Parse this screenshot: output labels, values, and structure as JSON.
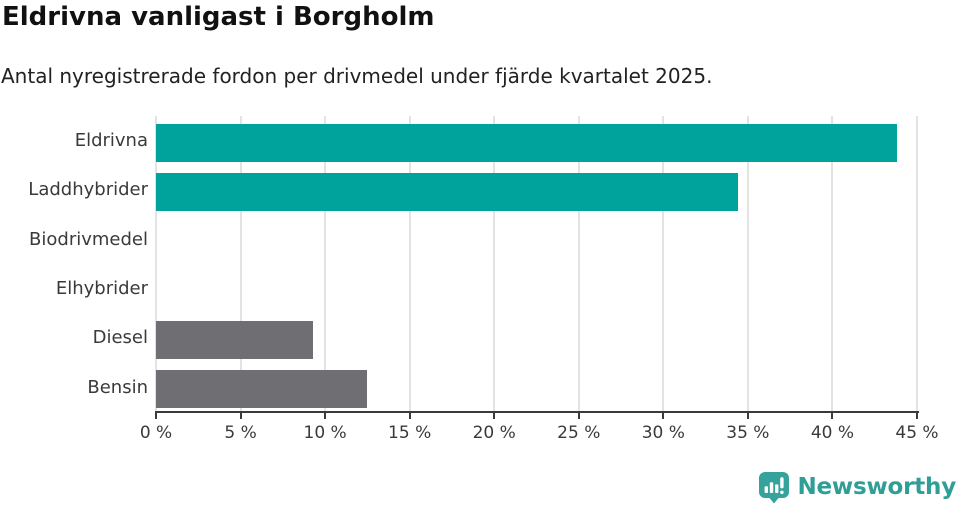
{
  "chart_data": {
    "type": "bar",
    "orientation": "horizontal",
    "title": "Eldrivna vanligast i Borgholm",
    "subtitle": "Antal nyregistrerade fordon per drivmedel under fjärde kvartalet 2025.",
    "categories": [
      "Eldrivna",
      "Laddhybrider",
      "Biodrivmedel",
      "Elhybrider",
      "Diesel",
      "Bensin"
    ],
    "values": [
      43.8,
      34.4,
      0,
      0,
      9.3,
      12.5
    ],
    "bar_colors": [
      "#00a29c",
      "#00a29c",
      "#6e6e73",
      "#00a29c",
      "#6e6e73",
      "#6e6e73"
    ],
    "xlim": [
      0,
      45
    ],
    "x_ticks": [
      0,
      5,
      10,
      15,
      20,
      25,
      30,
      35,
      40,
      45
    ],
    "x_tick_labels": [
      "0 %",
      "5 %",
      "10 %",
      "15 %",
      "20 %",
      "25 %",
      "30 %",
      "35 %",
      "40 %",
      "45 %"
    ],
    "unit": "percent",
    "grid": "vertical",
    "legend": "none"
  },
  "branding": {
    "logo_text": "Newsworthy",
    "logo_icon": "bar-chart-speech-bubble-icon"
  },
  "colors": {
    "bar_teal": "#00a29c",
    "bar_gray": "#6e6e73",
    "grid": "#e3e3e3",
    "axis": "#3a3a3a",
    "title": "#111111",
    "subtitle": "#222222",
    "label": "#3a3a3a",
    "logo_text": "#2f9e96",
    "logo_icon": "#35a39b"
  }
}
